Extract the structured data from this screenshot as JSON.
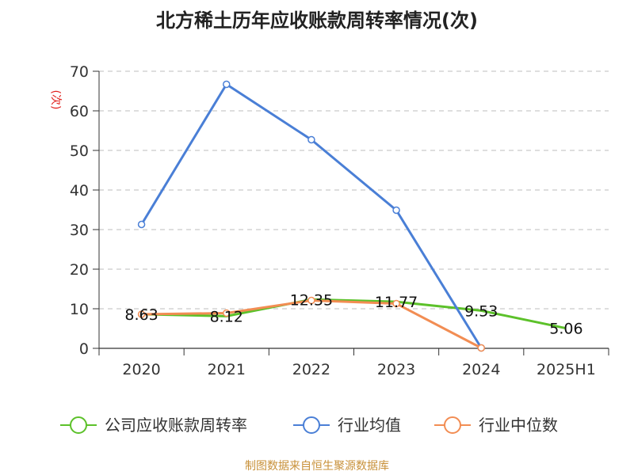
{
  "chart_data": {
    "type": "line",
    "title": "北方稀土历年应收账款周转率情况(次)",
    "ylabel": "(次)",
    "xlabel": "",
    "categories": [
      "2020",
      "2021",
      "2022",
      "2023",
      "2024",
      "2025H1"
    ],
    "ylim": [
      0,
      70
    ],
    "yticks": [
      0,
      10,
      20,
      30,
      40,
      50,
      60,
      70
    ],
    "grid": true,
    "legend_position": "bottom",
    "series": [
      {
        "name": "公司应收账款周转率",
        "color": "#5cc12a",
        "values": [
          8.63,
          8.12,
          12.35,
          11.77,
          9.53,
          5.06
        ],
        "labels": [
          "8.63",
          "8.12",
          "12.35",
          "11.77",
          "9.53",
          "5.06"
        ]
      },
      {
        "name": "行业均值",
        "color": "#4a7fd6",
        "values": [
          31.3,
          66.7,
          52.7,
          34.9,
          0.1,
          null
        ]
      },
      {
        "name": "行业中位数",
        "color": "#f28d53",
        "values": [
          8.6,
          8.9,
          12.1,
          11.3,
          0.1,
          null
        ]
      }
    ],
    "source": "制图数据来自恒生聚源数据库"
  }
}
